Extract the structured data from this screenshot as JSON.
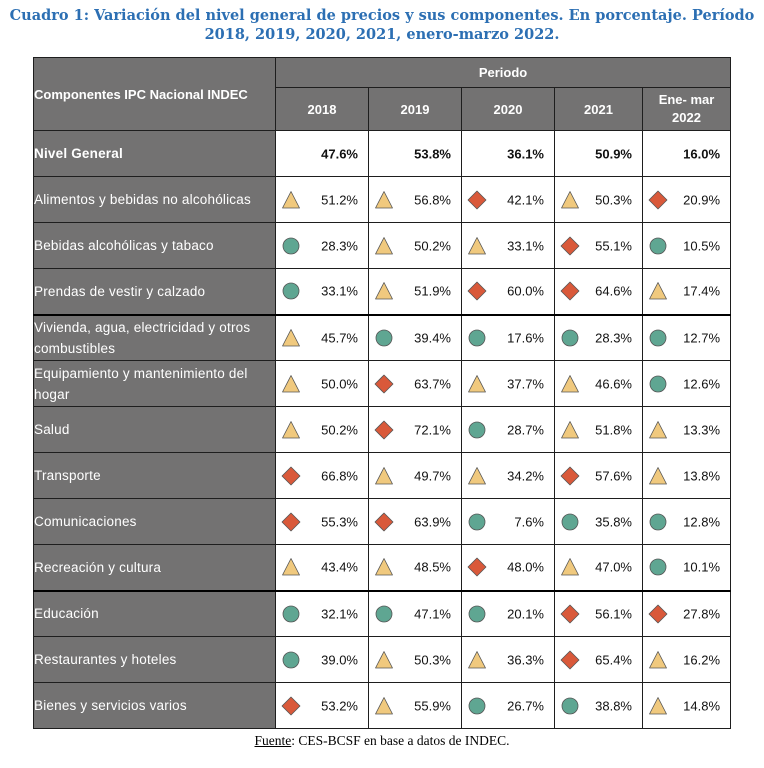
{
  "title": {
    "line1": "Cuadro 1: Variación del nivel general de precios y sus componentes. En porcentaje. Período",
    "line2": "2018, 2019, 2020, 2021, enero-marzo 2022."
  },
  "table": {
    "header_component": "Componentes  IPC Nacional INDEC",
    "header_periodo": "Periodo",
    "years": [
      "2018",
      "2019",
      "2020",
      "2021",
      "Ene- mar",
      "2022"
    ],
    "indicator_colors": {
      "triangle": "#f0c97e",
      "circle": "#5fa692",
      "diamond": "#d9593a"
    },
    "rows": [
      {
        "label": "Nivel General",
        "values": [
          "47.6%",
          "53.8%",
          "36.1%",
          "50.9%",
          "16.0%"
        ],
        "icons": [
          "",
          "",
          "",
          "",
          ""
        ]
      },
      {
        "label": "Alimentos y bebidas no alcohólicas",
        "values": [
          "51.2%",
          "56.8%",
          "42.1%",
          "50.3%",
          "20.9%"
        ],
        "icons": [
          "triangle",
          "triangle",
          "diamond",
          "triangle",
          "diamond"
        ]
      },
      {
        "label": "Bebidas alcohólicas y tabaco",
        "values": [
          "28.3%",
          "50.2%",
          "33.1%",
          "55.1%",
          "10.5%"
        ],
        "icons": [
          "circle",
          "triangle",
          "triangle",
          "diamond",
          "circle"
        ]
      },
      {
        "label": "Prendas de vestir y calzado",
        "values": [
          "33.1%",
          "51.9%",
          "60.0%",
          "64.6%",
          "17.4%"
        ],
        "icons": [
          "circle",
          "triangle",
          "diamond",
          "diamond",
          "triangle"
        ]
      },
      {
        "label": "Vivienda, agua, electricidad y otros combustibles",
        "values": [
          "45.7%",
          "39.4%",
          "17.6%",
          "28.3%",
          "12.7%"
        ],
        "icons": [
          "triangle",
          "circle",
          "circle",
          "circle",
          "circle"
        ]
      },
      {
        "label": "Equipamiento y mantenimiento del hogar",
        "values": [
          "50.0%",
          "63.7%",
          "37.7%",
          "46.6%",
          "12.6%"
        ],
        "icons": [
          "triangle",
          "diamond",
          "triangle",
          "triangle",
          "circle"
        ]
      },
      {
        "label": "Salud",
        "values": [
          "50.2%",
          "72.1%",
          "28.7%",
          "51.8%",
          "13.3%"
        ],
        "icons": [
          "triangle",
          "diamond",
          "circle",
          "triangle",
          "triangle"
        ]
      },
      {
        "label": "Transporte",
        "values": [
          "66.8%",
          "49.7%",
          "34.2%",
          "57.6%",
          "13.8%"
        ],
        "icons": [
          "diamond",
          "triangle",
          "triangle",
          "diamond",
          "triangle"
        ]
      },
      {
        "label": "Comunicaciones",
        "values": [
          "55.3%",
          "63.9%",
          "7.6%",
          "35.8%",
          "12.8%"
        ],
        "icons": [
          "diamond",
          "diamond",
          "circle",
          "circle",
          "circle"
        ]
      },
      {
        "label": "Recreación y cultura",
        "values": [
          "43.4%",
          "48.5%",
          "48.0%",
          "47.0%",
          "10.1%"
        ],
        "icons": [
          "triangle",
          "triangle",
          "diamond",
          "triangle",
          "circle"
        ]
      },
      {
        "label": "Educación",
        "values": [
          "32.1%",
          "47.1%",
          "20.1%",
          "56.1%",
          "27.8%"
        ],
        "icons": [
          "circle",
          "circle",
          "circle",
          "diamond",
          "diamond"
        ]
      },
      {
        "label": "Restaurantes y hoteles",
        "values": [
          "39.0%",
          "50.3%",
          "36.3%",
          "65.4%",
          "16.2%"
        ],
        "icons": [
          "circle",
          "triangle",
          "triangle",
          "diamond",
          "triangle"
        ]
      },
      {
        "label": "Bienes y servicios varios",
        "values": [
          "53.2%",
          "55.9%",
          "26.7%",
          "38.8%",
          "14.8%"
        ],
        "icons": [
          "diamond",
          "triangle",
          "circle",
          "circle",
          "triangle"
        ]
      }
    ]
  },
  "footer": {
    "label": "Fuente",
    "text": ": CES-BCSF en base a datos de INDEC."
  }
}
